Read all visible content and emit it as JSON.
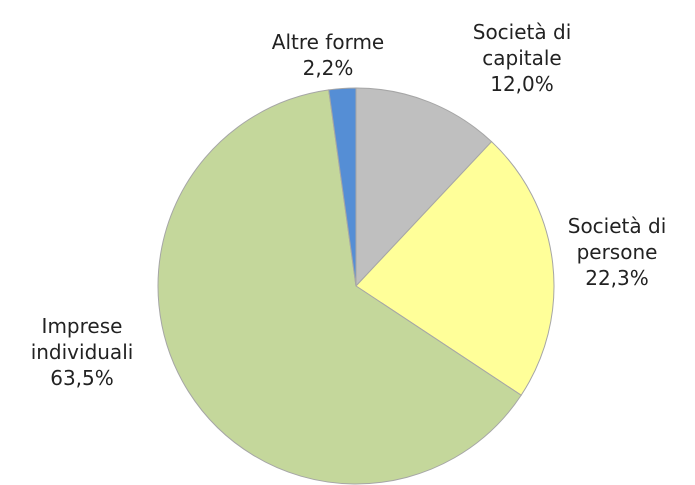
{
  "chart_data": {
    "type": "pie",
    "categories": [
      "Società di capitale",
      "Società di persone",
      "Imprese individuali",
      "Altre forme"
    ],
    "values": [
      12.0,
      22.3,
      63.5,
      2.2
    ],
    "value_labels": [
      "12,0%",
      "22,3%",
      "63,5%",
      "2,2%"
    ],
    "colors": [
      "#bfbfbf",
      "#ffff99",
      "#c4d79b",
      "#558ed5"
    ]
  }
}
